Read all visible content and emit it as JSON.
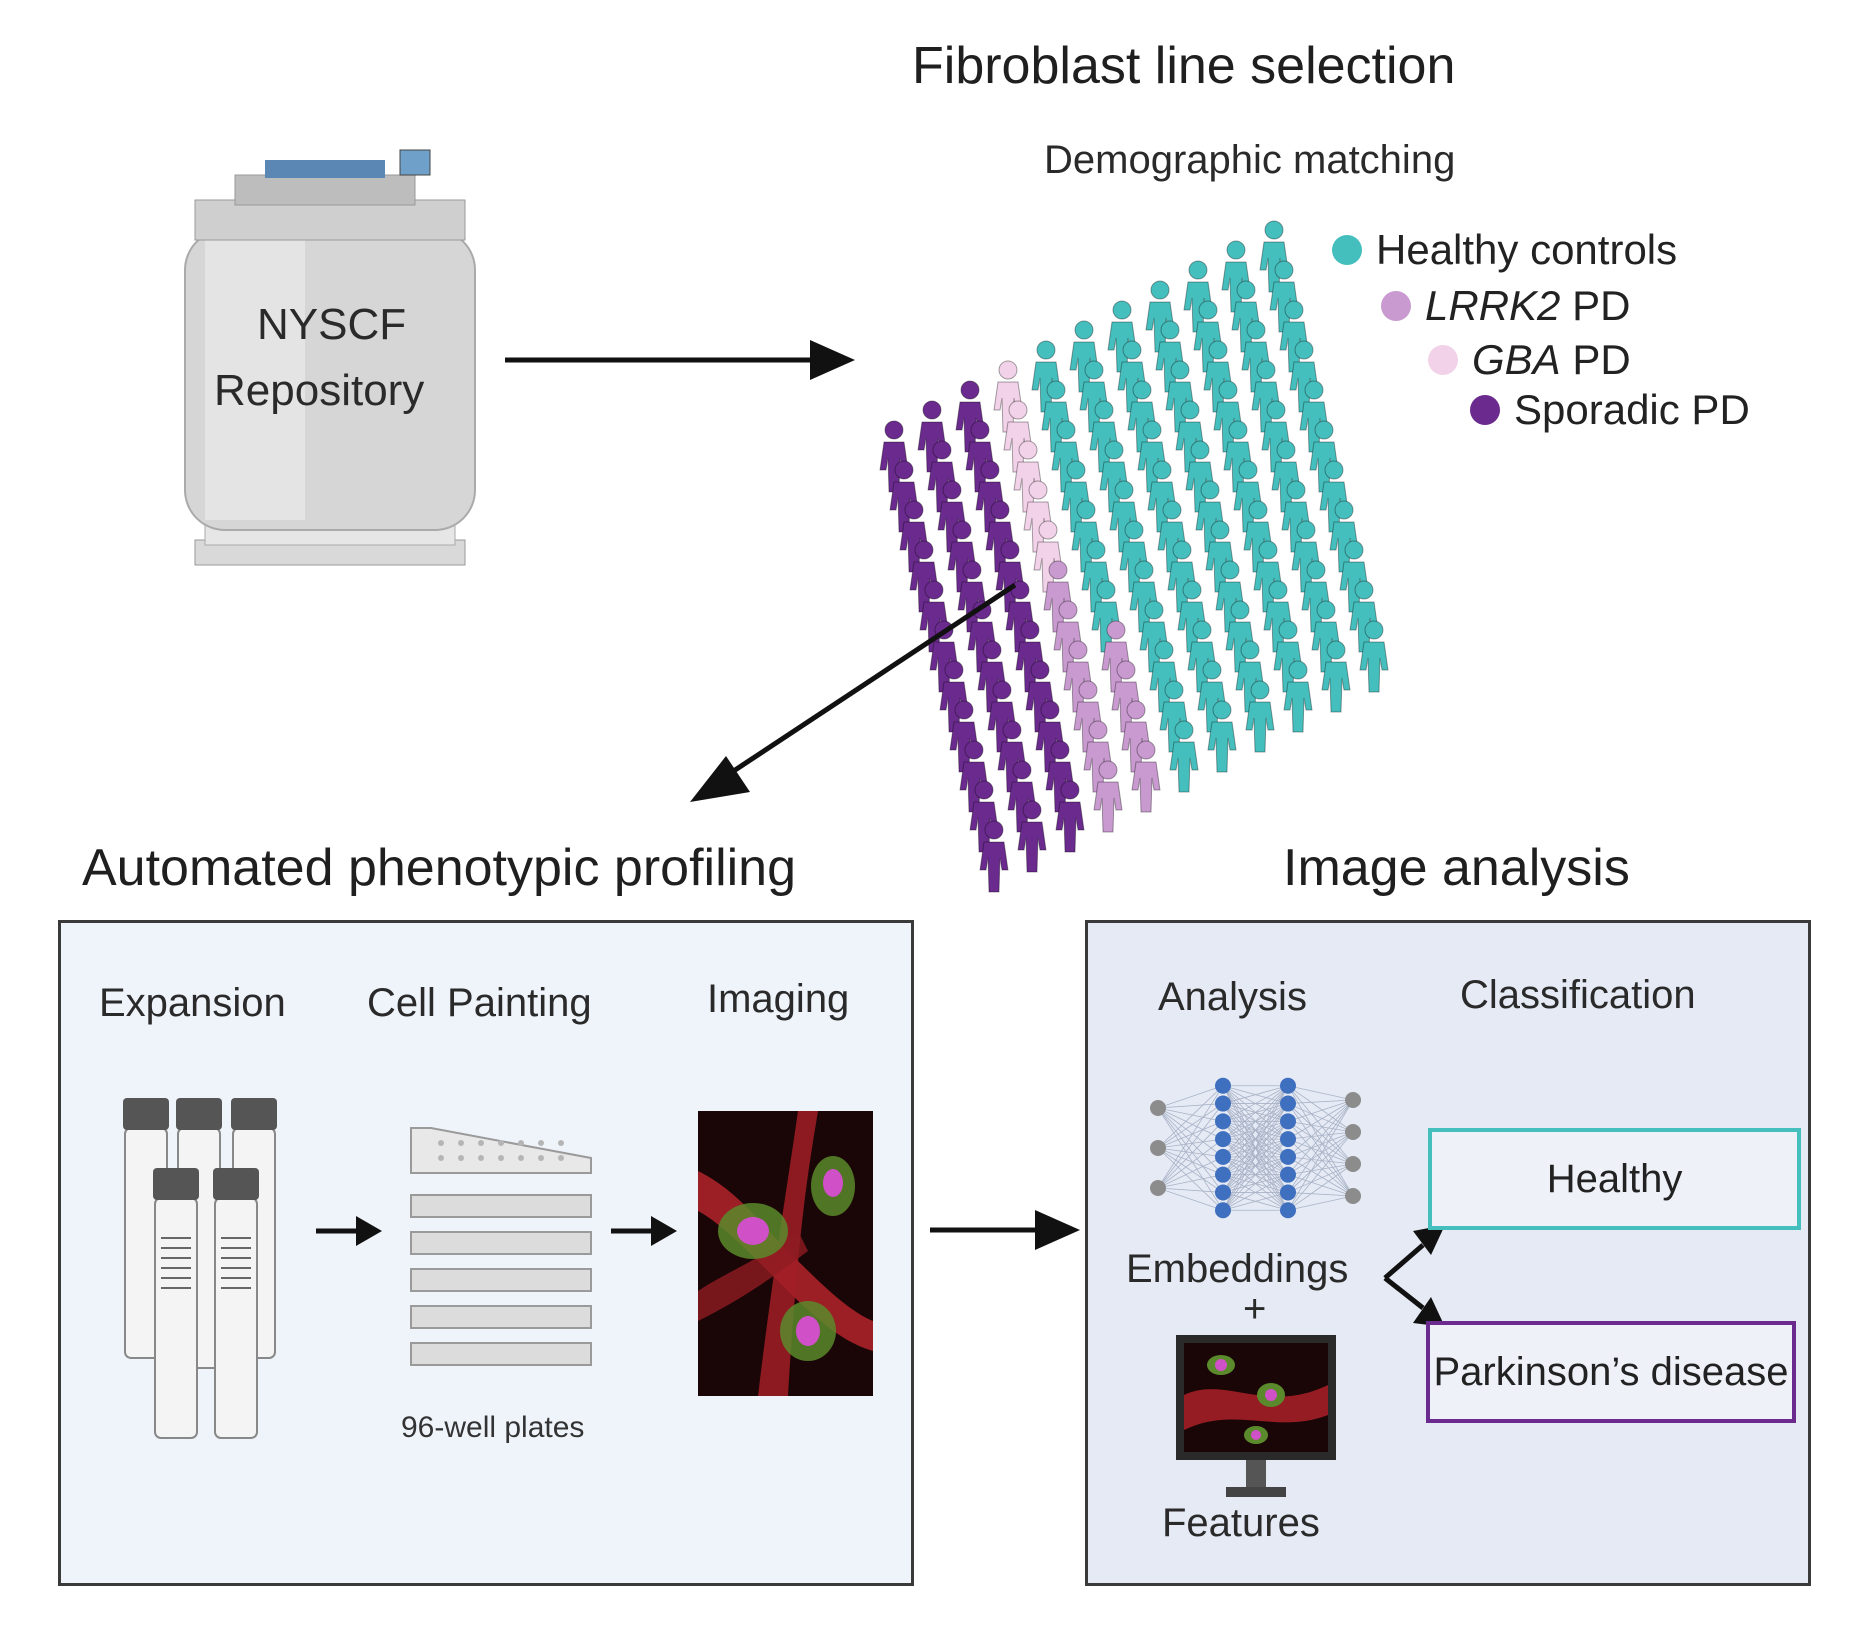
{
  "titles": {
    "fibroblast_selection": "Fibroblast line selection",
    "demographic_matching": "Demographic matching",
    "automated_profiling": "Automated phenotypic profiling",
    "image_analysis": "Image analysis"
  },
  "repository": {
    "line1": "NYSCF",
    "line2": "Repository"
  },
  "legend": [
    {
      "label": "Healthy controls",
      "italic_prefix": "",
      "color": "#45bfbd"
    },
    {
      "label": " PD",
      "italic_prefix": "LRRK2",
      "color": "#c99ad0"
    },
    {
      "label": " PD",
      "italic_prefix": "GBA",
      "color": "#f2d2e8"
    },
    {
      "label": "Sporadic PD",
      "italic_prefix": "",
      "color": "#6b2a8e"
    }
  ],
  "profiling": {
    "steps": [
      "Expansion",
      "Cell Painting",
      "Imaging"
    ],
    "plates_caption": "96-well plates"
  },
  "analysis": {
    "analysis_label": "Analysis",
    "classification_label": "Classification",
    "embeddings_label": "Embeddings",
    "plus": "+",
    "features_label": "Features",
    "healthy_label": "Healthy",
    "pd_label": "Parkinson’s disease",
    "healthy_color": "#45bfbd",
    "pd_color": "#6b2a8e"
  }
}
